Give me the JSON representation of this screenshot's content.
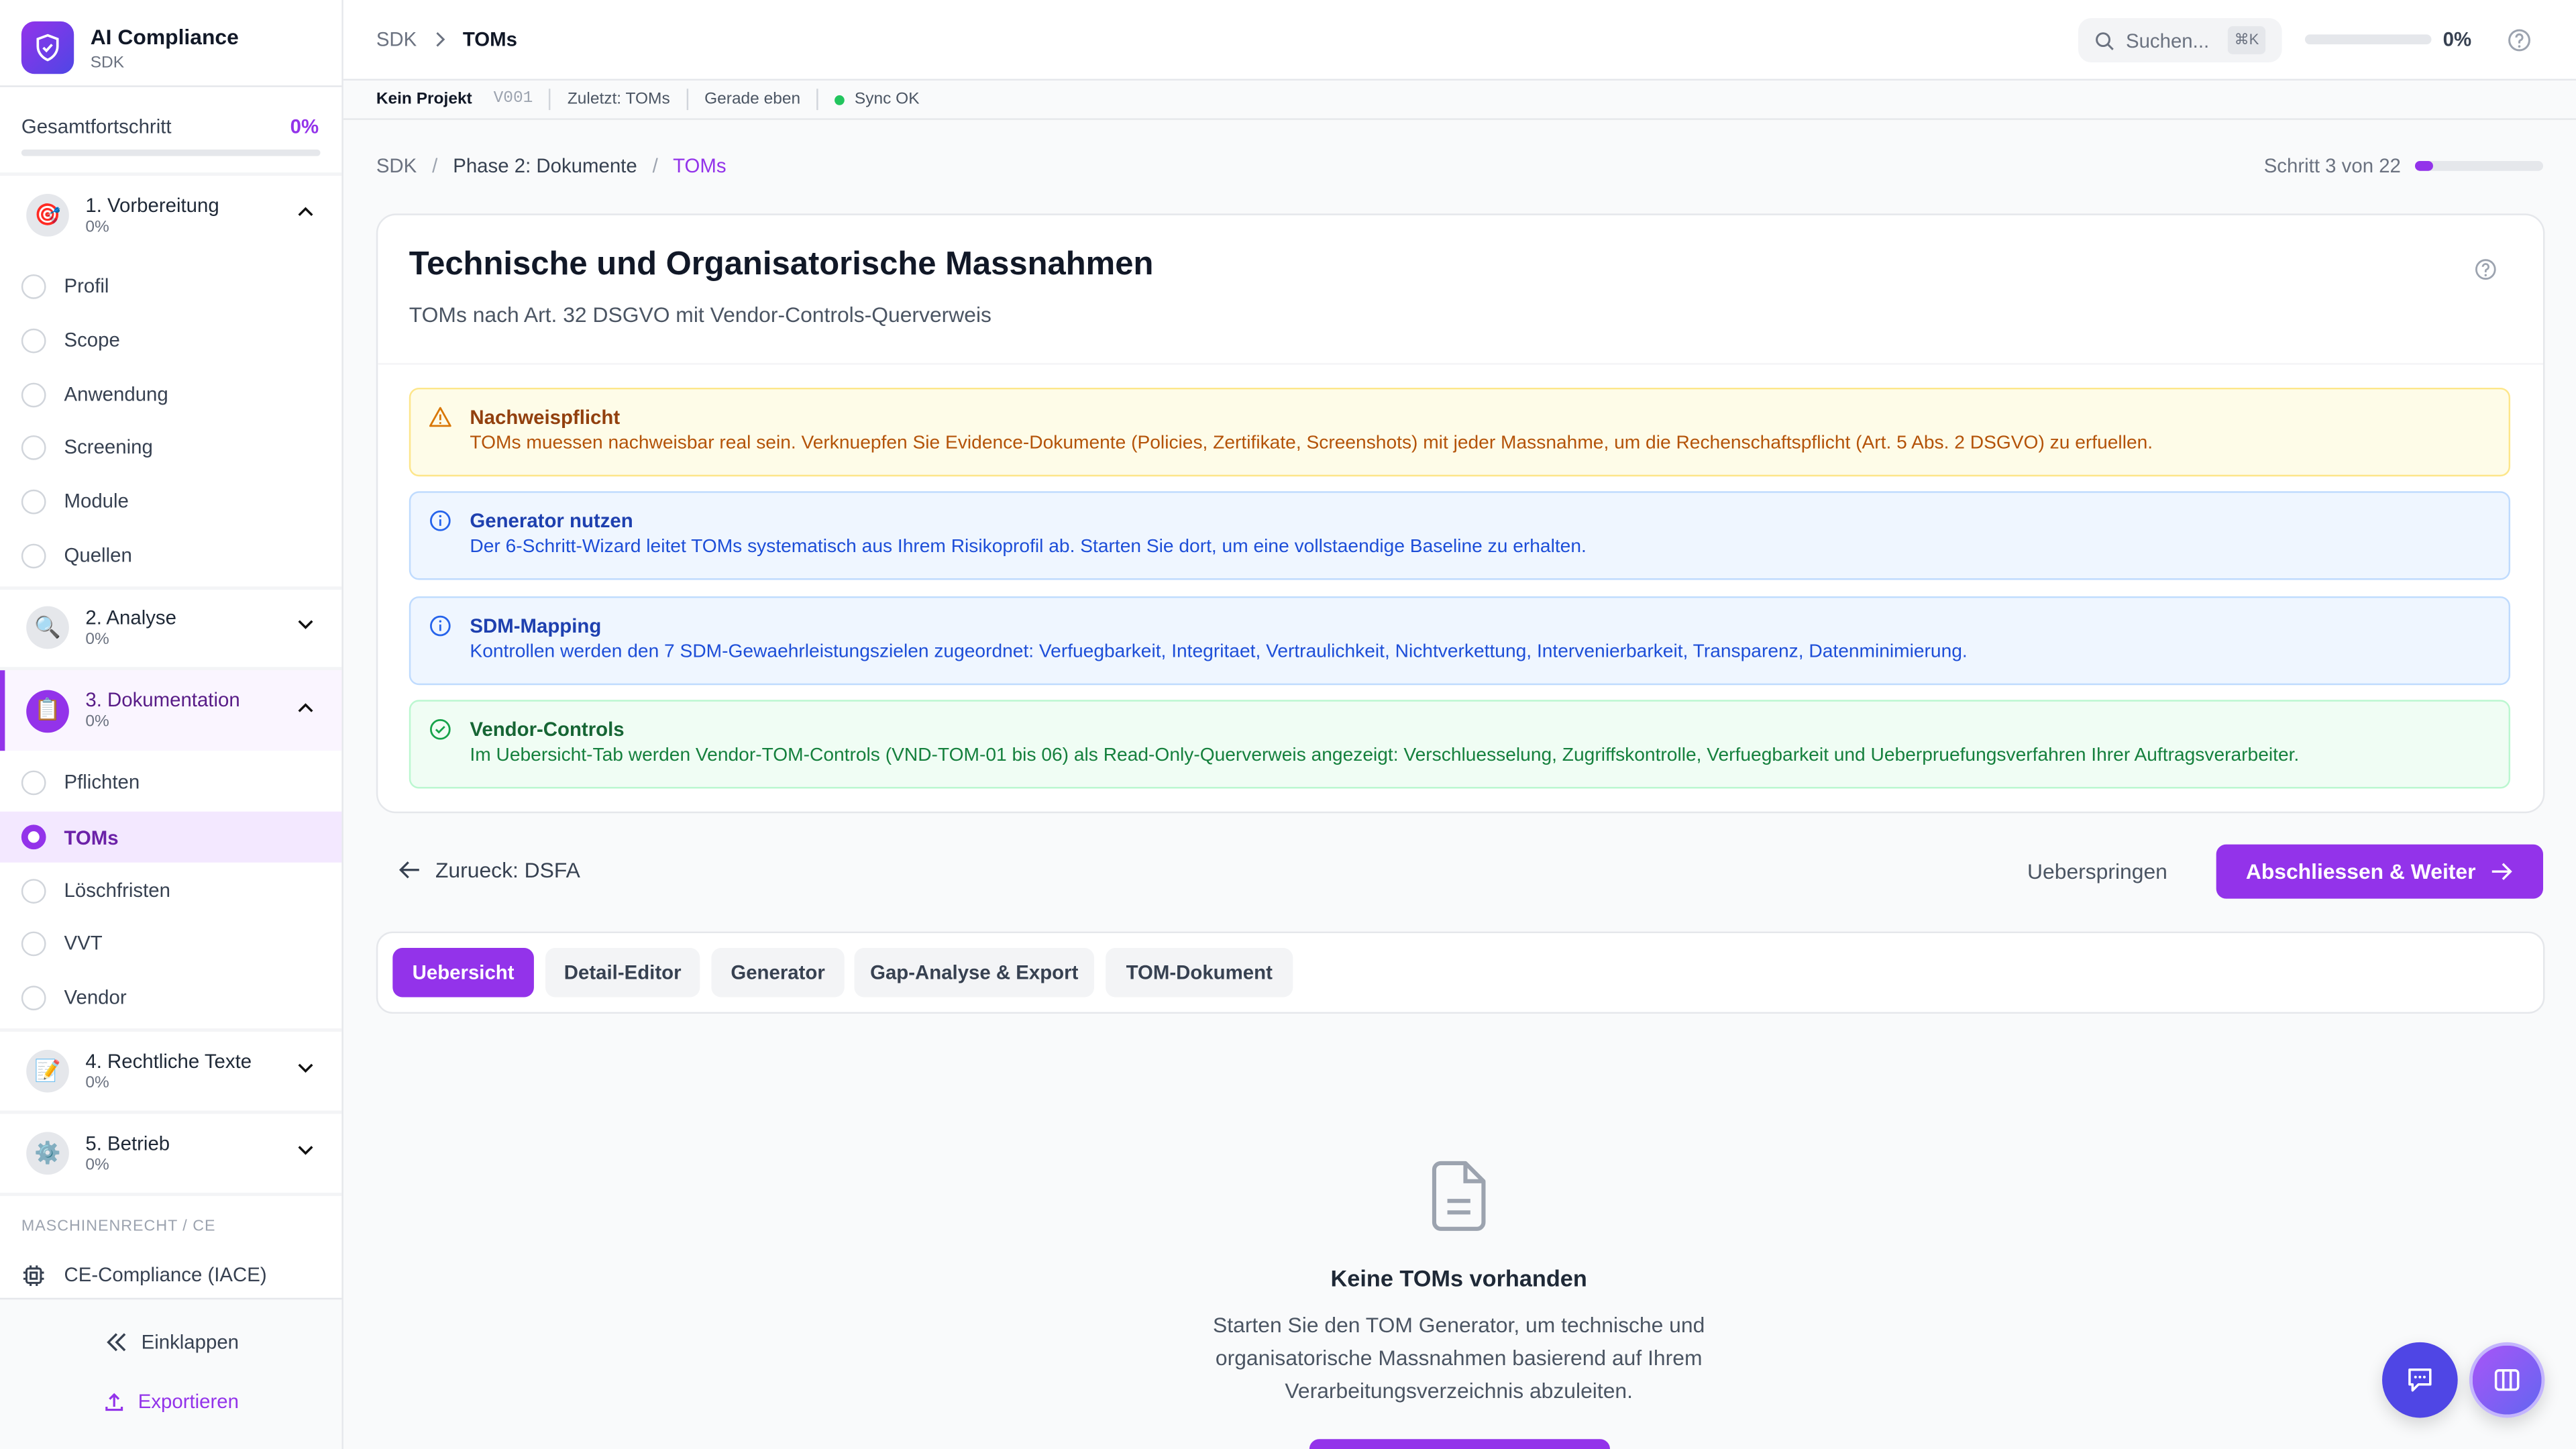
{
  "app": {
    "title": "AI Compliance",
    "subtitle": "SDK"
  },
  "sidebar": {
    "overall_label": "Gesamtfortschritt",
    "overall_value": "0%",
    "overall_progress": 0,
    "sections": [
      {
        "label": "1. Vorbereitung",
        "progress": "0%",
        "icon": "target-emoji",
        "expanded": true,
        "items": [
          "Profil",
          "Scope",
          "Anwendung",
          "Screening",
          "Module",
          "Quellen"
        ]
      },
      {
        "label": "2. Analyse",
        "progress": "0%",
        "icon": "magnifier-emoji",
        "expanded": false
      },
      {
        "label": "3. Dokumentation",
        "progress": "0%",
        "icon": "clipboard-emoji",
        "expanded": true,
        "items": [
          "Pflichten",
          "TOMs",
          "Löschfristen",
          "VVT",
          "Vendor"
        ],
        "active_item": "TOMs"
      },
      {
        "label": "4. Rechtliche Texte",
        "progress": "0%",
        "icon": "memo-emoji",
        "expanded": false
      },
      {
        "label": "5. Betrieb",
        "progress": "0%",
        "icon": "gear-emoji",
        "expanded": false
      }
    ],
    "group_label": "MASCHINENRECHT / CE",
    "ce_item": "CE-Compliance (IACE)",
    "collapse": "Einklappen",
    "export": "Exportieren"
  },
  "header": {
    "crumb_root": "SDK",
    "crumb_current": "TOMs",
    "search_placeholder": "Suchen...",
    "shortcut": "⌘K",
    "progress_value": "0%",
    "progress": 0
  },
  "statusbar": {
    "project": "Kein Projekt",
    "version": "V001",
    "last": "Zuletzt: TOMs",
    "time": "Gerade eben",
    "sync": "Sync OK",
    "sync_color": "#22c55e"
  },
  "breadcrumb": [
    "SDK",
    "Phase 2: Dokumente",
    "TOMs"
  ],
  "step": {
    "label": "Schritt 3 von 22",
    "current": 3,
    "total": 22
  },
  "page": {
    "title": "Technische und Organisatorische Massnahmen",
    "subtitle": "TOMs nach Art. 32 DSGVO mit Vendor-Controls-Querverweis"
  },
  "alerts": [
    {
      "type": "warning",
      "title": "Nachweispflicht",
      "text": "TOMs muessen nachweisbar real sein. Verknuepfen Sie Evidence-Dokumente (Policies, Zertifikate, Screenshots) mit jeder Massnahme, um die Rechenschaftspflicht (Art. 5 Abs. 2 DSGVO) zu erfuellen."
    },
    {
      "type": "info",
      "title": "Generator nutzen",
      "text": "Der 6-Schritt-Wizard leitet TOMs systematisch aus Ihrem Risikoprofil ab. Starten Sie dort, um eine vollstaendige Baseline zu erhalten."
    },
    {
      "type": "info",
      "title": "SDM-Mapping",
      "text": "Kontrollen werden den 7 SDM-Gewaehrleistungszielen zugeordnet: Verfuegbarkeit, Integritaet, Vertraulichkeit, Nichtverkettung, Intervenierbarkeit, Transparenz, Datenminimierung."
    },
    {
      "type": "success",
      "title": "Vendor-Controls",
      "text": "Im Uebersicht-Tab werden Vendor-TOM-Controls (VND-TOM-01 bis 06) als Read-Only-Querverweis angezeigt: Verschluesselung, Zugriffskontrolle, Verfuegbarkeit und Ueberpruefungsverfahren Ihrer Auftragsverarbeiter."
    }
  ],
  "nav": {
    "back": "Zurueck: DSFA",
    "skip": "Ueberspringen",
    "next": "Abschliessen & Weiter"
  },
  "tabs": [
    "Uebersicht",
    "Detail-Editor",
    "Generator",
    "Gap-Analyse & Export",
    "TOM-Dokument"
  ],
  "active_tab": "Uebersicht",
  "empty": {
    "title": "Keine TOMs vorhanden",
    "text": "Starten Sie den TOM Generator, um technische und organisatorische Massnahmen basierend auf Ihrem Verarbeitungsverzeichnis abzuleiten."
  },
  "colors": {
    "accent": "#9333ea",
    "chat": "#4f46e5"
  }
}
